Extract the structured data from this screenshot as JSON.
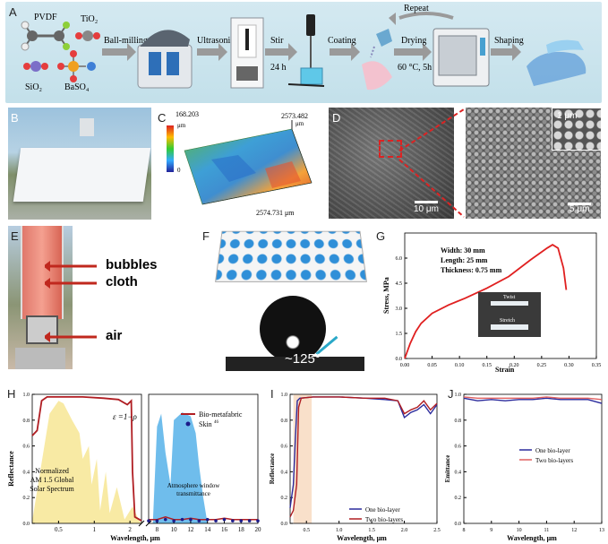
{
  "panel_a": {
    "label": "A",
    "chem_pvdf": "PVDF",
    "chem_tio2": "TiO₂",
    "chem_sio2": "SiO₂",
    "chem_baso4": "BaSO₄",
    "step_ball": "Ball-milling",
    "step_ultra": "Ultrasonic",
    "step_stir": "Stir",
    "step_stir_time": "24 h",
    "step_coating": "Coating",
    "step_repeat": "Repeat",
    "step_drying": "Drying",
    "step_drying_cond": "60 °C, 5h",
    "step_shaping": "Shaping"
  },
  "panel_b": {
    "label": "B"
  },
  "panel_c": {
    "label": "C",
    "z_max": "168.203",
    "z_unit": "μm",
    "z_zero": "0",
    "y_extent": "2573.482",
    "y_unit": "μm",
    "x_extent": "2574.731 μm"
  },
  "panel_d": {
    "label": "D",
    "scale_left": "10 μm",
    "scale_right": "5 μm",
    "scale_inset": "1 μm"
  },
  "panel_e": {
    "label": "E",
    "bubbles": "bubbles",
    "cloth": "cloth",
    "air": "air"
  },
  "panel_f": {
    "label": "F",
    "contact_angle": "~125°"
  },
  "panel_g": {
    "label": "G",
    "width_note": "Width: 30 mm",
    "length_note": "Length: 25 mm",
    "thickness_note": "Thickness: 0.75 mm",
    "twist": "Twist",
    "stretch": "Stretch",
    "xlabel": "Strain",
    "ylabel": "Stress, MPa",
    "xticks": [
      "0.00",
      "0.05",
      "0.10",
      "0.15",
      "0.20",
      "0.25",
      "0.30",
      "0.35"
    ],
    "yticks": [
      "0.0",
      "1.5",
      "3.0",
      "4.5",
      "6.0"
    ]
  },
  "panel_h": {
    "label": "H",
    "ylabel": "Reflectance",
    "xlabel": "Wavelength, μm",
    "equation": "ε =1−ρ",
    "legend_bio": "Bio-metafabric",
    "legend_skin": "Skin",
    "legend_skin_sup": "46",
    "solar_label_1": "Normalized",
    "solar_label_2": "AM 1.5 Global",
    "solar_label_3": "Solar Spectrum",
    "atm_label_1": "Atmosphere window",
    "atm_label_2": "transmittance",
    "xticks_left": [
      "0.5",
      "1",
      "2"
    ],
    "xticks_right": [
      "8",
      "10",
      "12",
      "14",
      "16",
      "18",
      "20"
    ],
    "yticks": [
      "0.0",
      "0.2",
      "0.4",
      "0.6",
      "0.8",
      "1.0"
    ]
  },
  "panel_i": {
    "label": "I",
    "ylabel": "Reflectance",
    "xlabel": "Wavelength, μm",
    "legend_one": "One bio-layer",
    "legend_two": "Two bio-layers",
    "xticks": [
      "0.5",
      "1.0",
      "1.5",
      "2.0",
      "2.5"
    ],
    "yticks": [
      "0.0",
      "0.2",
      "0.4",
      "0.6",
      "0.8",
      "1.0"
    ]
  },
  "panel_j": {
    "label": "J",
    "ylabel": "Emittance",
    "xlabel": "Wavelength, μm",
    "legend_one": "One bio-layer",
    "legend_two": "Two bio-layers",
    "xticks": [
      "8",
      "9",
      "10",
      "11",
      "12",
      "13"
    ],
    "yticks": [
      "0.0",
      "0.2",
      "0.4",
      "0.6",
      "0.8",
      "1.0"
    ]
  },
  "colors": {
    "bio_red": "#b01e23",
    "one_layer_blue": "#2a2a9c",
    "solar_yellow": "#f7e89a",
    "atm_blue": "#5fb6ea",
    "arrow_red": "#c0281e"
  },
  "chart_data": [
    {
      "type": "line",
      "panel": "G",
      "xlabel": "Strain",
      "ylabel": "Stress, MPa",
      "xlim": [
        0,
        0.35
      ],
      "ylim": [
        0,
        7.5
      ],
      "series": [
        {
          "x": [
            0,
            0.01,
            0.02,
            0.03,
            0.05,
            0.08,
            0.11,
            0.15,
            0.19,
            0.23,
            0.26,
            0.27,
            0.28,
            0.29,
            0.295
          ],
          "y": [
            0,
            0.9,
            1.6,
            2.1,
            2.7,
            3.2,
            3.6,
            4.2,
            4.9,
            5.9,
            6.6,
            6.8,
            6.6,
            5.4,
            4.1
          ]
        }
      ]
    },
    {
      "type": "line",
      "panel": "H",
      "xlabel": "Wavelength, μm",
      "ylabel": "Reflectance",
      "ylim": [
        0,
        1.0
      ],
      "series": [
        {
          "name": "Bio-metafabric",
          "x": [
            0.3,
            0.33,
            0.36,
            0.4,
            0.5,
            0.8,
            1.2,
            1.6,
            1.9,
            2.05,
            2.1,
            2.2,
            2.4,
            2.5
          ],
          "y": [
            0.68,
            0.72,
            0.95,
            0.98,
            0.98,
            0.98,
            0.97,
            0.96,
            0.92,
            0.95,
            0.4,
            0.05,
            0.03,
            0.02
          ]
        },
        {
          "name": "Bio-metafabric",
          "x": [
            7,
            8,
            9,
            10,
            11,
            12,
            13,
            14,
            15,
            16,
            17,
            18,
            19,
            20
          ],
          "y": [
            0.03,
            0.03,
            0.05,
            0.03,
            0.03,
            0.04,
            0.03,
            0.03,
            0.03,
            0.04,
            0.03,
            0.03,
            0.03,
            0.03
          ]
        },
        {
          "name": "Skin",
          "x": [
            7,
            8,
            9,
            10,
            11,
            12,
            13,
            14,
            15,
            16,
            17,
            18,
            19,
            20
          ],
          "y": [
            0.02,
            0.02,
            0.03,
            0.02,
            0.03,
            0.03,
            0.02,
            0.03,
            0.02,
            0.03,
            0.02,
            0.02,
            0.02,
            0.02
          ]
        }
      ]
    },
    {
      "type": "line",
      "panel": "I",
      "xlabel": "Wavelength, μm",
      "ylabel": "Reflectance",
      "xlim": [
        0.25,
        2.5
      ],
      "ylim": [
        0,
        1.0
      ],
      "series": [
        {
          "name": "One bio-layer",
          "x": [
            0.25,
            0.3,
            0.33,
            0.36,
            0.4,
            0.6,
            1.0,
            1.4,
            1.7,
            1.9,
            2.0,
            2.1,
            2.2,
            2.3,
            2.4,
            2.5
          ],
          "y": [
            0.12,
            0.3,
            0.65,
            0.95,
            0.97,
            0.98,
            0.98,
            0.97,
            0.96,
            0.95,
            0.82,
            0.86,
            0.88,
            0.92,
            0.85,
            0.92
          ]
        },
        {
          "name": "Two bio-layers",
          "x": [
            0.25,
            0.3,
            0.35,
            0.38,
            0.42,
            0.6,
            1.0,
            1.4,
            1.7,
            1.9,
            2.0,
            2.1,
            2.2,
            2.3,
            2.4,
            2.5
          ],
          "y": [
            0.05,
            0.1,
            0.3,
            0.9,
            0.97,
            0.98,
            0.98,
            0.97,
            0.97,
            0.95,
            0.85,
            0.88,
            0.9,
            0.95,
            0.88,
            0.93
          ]
        }
      ]
    },
    {
      "type": "line",
      "panel": "J",
      "xlabel": "Wavelength, μm",
      "ylabel": "Emittance",
      "xlim": [
        8,
        13
      ],
      "ylim": [
        0,
        1.0
      ],
      "series": [
        {
          "name": "One bio-layer",
          "x": [
            8,
            8.5,
            9,
            9.5,
            10,
            10.5,
            11,
            11.5,
            12,
            12.5,
            13
          ],
          "y": [
            0.97,
            0.95,
            0.96,
            0.95,
            0.96,
            0.96,
            0.97,
            0.96,
            0.96,
            0.96,
            0.93
          ]
        },
        {
          "name": "Two bio-layers",
          "x": [
            8,
            8.5,
            9,
            9.5,
            10,
            10.5,
            11,
            11.5,
            12,
            12.5,
            13
          ],
          "y": [
            0.98,
            0.97,
            0.97,
            0.97,
            0.97,
            0.97,
            0.98,
            0.97,
            0.97,
            0.97,
            0.96
          ]
        }
      ]
    }
  ]
}
